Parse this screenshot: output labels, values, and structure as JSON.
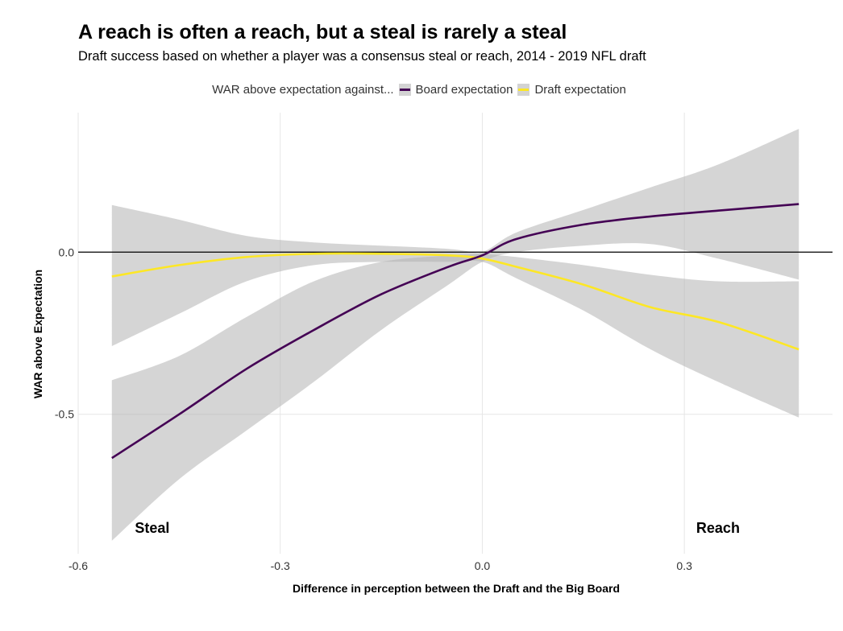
{
  "chart_data": {
    "type": "line",
    "title": "A reach is often a reach, but a steal is rarely a steal",
    "subtitle": "Draft success based on whether a player was a consensus steal or reach, 2014 - 2019 NFL draft",
    "xlabel": "Difference in perception between the Draft and the Big Board",
    "ylabel": "WAR above Expectation",
    "xlim": [
      -0.6,
      0.52
    ],
    "ylim": [
      -0.93,
      0.43
    ],
    "x_ticks": [
      -0.6,
      -0.3,
      0.0,
      0.3
    ],
    "x_tick_labels": [
      "-0.6",
      "-0.3",
      "0.0",
      "0.3"
    ],
    "y_ticks": [
      0.0,
      -0.5
    ],
    "y_tick_labels": [
      "0.0",
      "-0.5"
    ],
    "grid": true,
    "reference_line_y": 0,
    "legend": {
      "title": "WAR above expectation against...",
      "placement": "top",
      "entries": [
        "Board expectation",
        "Draft expectation"
      ]
    },
    "annotations": [
      {
        "text": "Steal",
        "x": -0.49,
        "y": -0.85
      },
      {
        "text": "Reach",
        "x": 0.35,
        "y": -0.85
      }
    ],
    "x": [
      -0.55,
      -0.45,
      -0.35,
      -0.25,
      -0.15,
      -0.05,
      0.0,
      0.05,
      0.15,
      0.25,
      0.35,
      0.47
    ],
    "series": [
      {
        "name": "Board expectation",
        "color": "#440154",
        "values": [
          -0.635,
          -0.5,
          -0.36,
          -0.24,
          -0.13,
          -0.045,
          -0.01,
          0.04,
          0.085,
          0.11,
          0.128,
          0.148
        ],
        "ci_lower": [
          -0.89,
          -0.7,
          -0.55,
          -0.4,
          -0.24,
          -0.1,
          -0.03,
          0.0,
          0.02,
          0.025,
          -0.02,
          -0.085
        ],
        "ci_upper": [
          -0.395,
          -0.32,
          -0.2,
          -0.09,
          -0.03,
          -0.01,
          0.0,
          0.06,
          0.13,
          0.2,
          0.27,
          0.38
        ]
      },
      {
        "name": "Draft expectation",
        "color": "#fde725",
        "values": [
          -0.075,
          -0.04,
          -0.015,
          -0.005,
          -0.005,
          -0.01,
          -0.02,
          -0.045,
          -0.1,
          -0.17,
          -0.215,
          -0.3
        ],
        "ci_lower": [
          -0.29,
          -0.19,
          -0.09,
          -0.04,
          -0.03,
          -0.03,
          -0.03,
          -0.08,
          -0.18,
          -0.3,
          -0.4,
          -0.51
        ],
        "ci_upper": [
          0.145,
          0.1,
          0.05,
          0.03,
          0.02,
          0.01,
          -0.005,
          -0.015,
          -0.04,
          -0.07,
          -0.09,
          -0.09
        ]
      }
    ]
  }
}
